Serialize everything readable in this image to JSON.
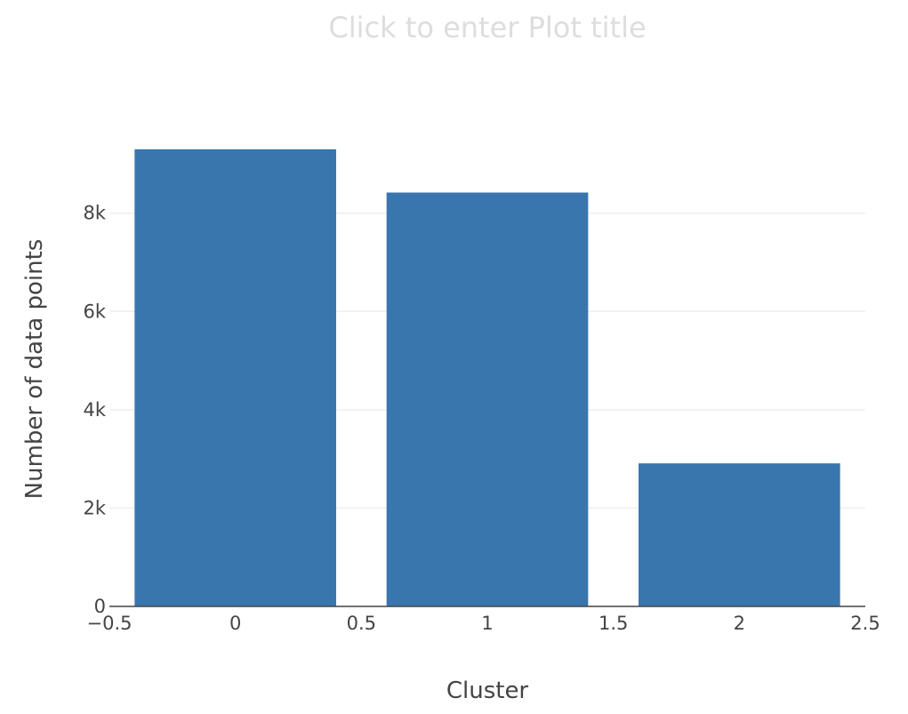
{
  "plot": {
    "title_placeholder": "Click to enter Plot title"
  },
  "chart_data": {
    "type": "bar",
    "x": [
      0,
      1,
      2
    ],
    "values": [
      9300,
      8420,
      2910
    ],
    "xlabel": "Cluster",
    "ylabel": "Number of data points",
    "xlim": [
      -0.5,
      2.5
    ],
    "ylim": [
      0,
      9750
    ],
    "x_ticks": [
      -0.5,
      0,
      0.5,
      1,
      1.5,
      2,
      2.5
    ],
    "x_tick_labels": [
      "−0.5",
      "0",
      "0.5",
      "1",
      "1.5",
      "2",
      "2.5"
    ],
    "y_ticks": [
      0,
      2000,
      4000,
      6000,
      8000
    ],
    "y_tick_labels": [
      "0",
      "2k",
      "4k",
      "6k",
      "8k"
    ],
    "bar_width": 0.8,
    "grid": true,
    "colors": {
      "bar": "#3a76ae"
    }
  }
}
